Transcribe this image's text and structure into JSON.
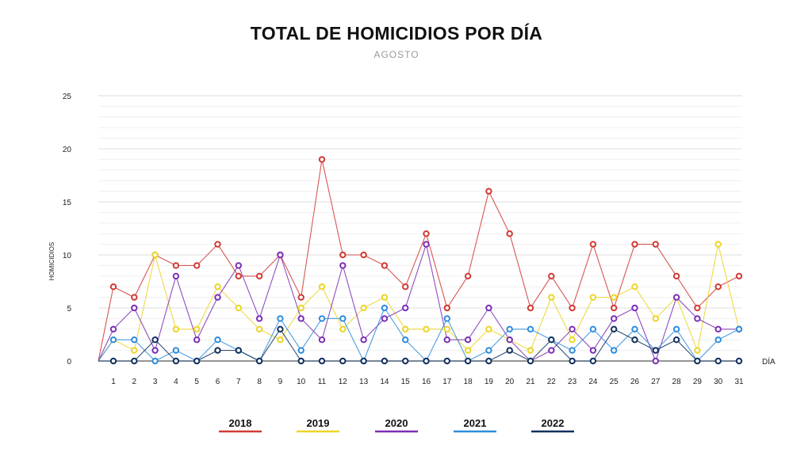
{
  "chart_data": {
    "type": "line",
    "title": "TOTAL DE HOMICIDIOS POR DÍA",
    "subtitle": "AGOSTO",
    "xlabel": "DÍA",
    "ylabel": "HOMICIDIOS",
    "ylim": [
      0,
      25
    ],
    "yticks": [
      0,
      5,
      10,
      15,
      20,
      25
    ],
    "grid": true,
    "legend_position": "bottom",
    "categories": [
      "1",
      "2",
      "3",
      "4",
      "5",
      "6",
      "7",
      "8",
      "9",
      "10",
      "11",
      "12",
      "13",
      "14",
      "15",
      "16",
      "17",
      "18",
      "19",
      "20",
      "21",
      "22",
      "23",
      "24",
      "25",
      "26",
      "27",
      "28",
      "29",
      "30",
      "31"
    ],
    "series": [
      {
        "name": "2018",
        "color": "#d03a34",
        "values": [
          7,
          6,
          10,
          9,
          9,
          11,
          8,
          8,
          10,
          6,
          19,
          10,
          10,
          9,
          7,
          12,
          5,
          8,
          16,
          12,
          5,
          8,
          5,
          11,
          5,
          11,
          11,
          8,
          5,
          7,
          8
        ]
      },
      {
        "name": "2019",
        "color": "#ecd427",
        "values": [
          2,
          1,
          10,
          3,
          3,
          7,
          5,
          3,
          2,
          5,
          7,
          3,
          5,
          6,
          3,
          3,
          3,
          1,
          3,
          2,
          1,
          6,
          2,
          6,
          6,
          7,
          4,
          6,
          1,
          11,
          3
        ]
      },
      {
        "name": "2020",
        "color": "#7b2fb5",
        "values": [
          3,
          5,
          1,
          8,
          2,
          6,
          9,
          4,
          10,
          4,
          2,
          9,
          2,
          4,
          5,
          11,
          2,
          2,
          5,
          2,
          0,
          1,
          3,
          1,
          4,
          5,
          0,
          6,
          4,
          3,
          3
        ]
      },
      {
        "name": "2021",
        "color": "#2e8ddc",
        "values": [
          2,
          2,
          0,
          1,
          0,
          2,
          1,
          0,
          4,
          1,
          4,
          4,
          0,
          5,
          2,
          0,
          4,
          0,
          1,
          3,
          3,
          2,
          1,
          3,
          1,
          3,
          1,
          3,
          0,
          2,
          3
        ]
      },
      {
        "name": "2022",
        "color": "#10305e",
        "values": [
          0,
          0,
          2,
          0,
          0,
          1,
          1,
          0,
          3,
          0,
          0,
          0,
          0,
          0,
          0,
          0,
          0,
          0,
          0,
          1,
          0,
          2,
          0,
          0,
          3,
          2,
          1,
          2,
          0,
          0,
          0
        ]
      }
    ]
  }
}
